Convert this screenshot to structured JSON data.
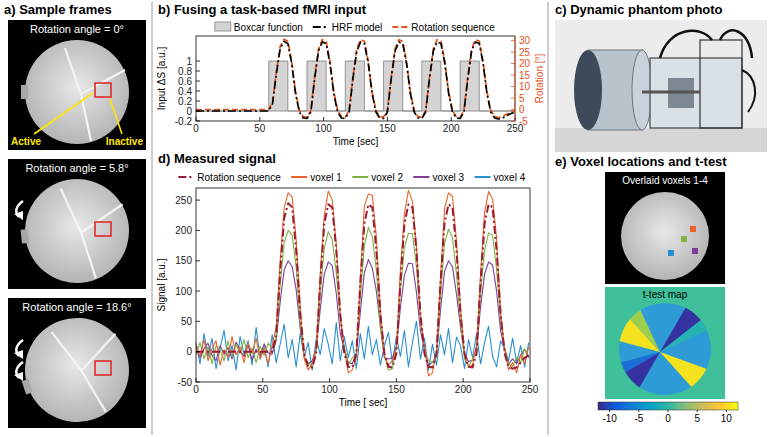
{
  "panel_a": {
    "title": "a) Sample frames",
    "active_label": "Active",
    "inactive_label": "Inactive",
    "frames": [
      {
        "label": "Rotation angle = 0°",
        "angle": 0
      },
      {
        "label": "Rotation angle = 5.8°",
        "angle": 5.8
      },
      {
        "label": "Rotation angle = 18.6°",
        "angle": 18.6
      }
    ]
  },
  "panel_c": {
    "title": "c) Dynamic phantom photo"
  },
  "panel_e": {
    "title": "e) Voxel locations and t-test",
    "overlay_label": "Overlaid voxels 1-4",
    "map_label": "t-test map",
    "colorbar": {
      "range": [
        -12,
        12
      ],
      "ticks": [
        -10,
        -5,
        0,
        5,
        10
      ]
    }
  },
  "chart_data": [
    {
      "type": "line",
      "title": "b) Fusing a task-based fMRI input",
      "x_label": "Time [sec]",
      "y_label": "Input ΔS [a.u.]",
      "y2_label": "Rotation [°]",
      "xlim": [
        0,
        250
      ],
      "xticks": [
        0,
        50,
        100,
        150,
        200,
        250
      ],
      "ylim": [
        -0.2,
        1.5
      ],
      "yticks": [
        -0.2,
        0,
        0.2,
        0.4,
        0.6,
        0.8,
        1
      ],
      "y2lim": [
        -5,
        32
      ],
      "y2ticks": [
        -5,
        0,
        5,
        10,
        15,
        20,
        25,
        30
      ],
      "legend": "top",
      "x": [
        0,
        3,
        6,
        9,
        12,
        15,
        18,
        21,
        24,
        27,
        30,
        33,
        36,
        39,
        42,
        45,
        48,
        51,
        54,
        57,
        60,
        63,
        66,
        69,
        72,
        75,
        78,
        81,
        84,
        87,
        90,
        93,
        96,
        99,
        102,
        105,
        108,
        111,
        114,
        117,
        120,
        123,
        126,
        129,
        132,
        135,
        138,
        141,
        144,
        147,
        150,
        153,
        156,
        159,
        162,
        165,
        168,
        171,
        174,
        177,
        180,
        183,
        186,
        189,
        192,
        195,
        198,
        201,
        204,
        207,
        210,
        213,
        216,
        219,
        222,
        225,
        228,
        231,
        234,
        237,
        240,
        243,
        246,
        249
      ],
      "series": [
        {
          "name": "Boxcar function",
          "type": "area",
          "color": "#d4d4d4",
          "x": [
            0,
            57,
            57,
            72,
            72,
            87,
            87,
            102,
            102,
            117,
            117,
            132,
            132,
            147,
            147,
            162,
            162,
            177,
            177,
            192,
            192,
            207,
            207,
            222,
            222,
            250
          ],
          "values": [
            0,
            0,
            1,
            1,
            0,
            0,
            1,
            1,
            0,
            0,
            1,
            1,
            0,
            0,
            1,
            1,
            0,
            0,
            1,
            1,
            0,
            0,
            1,
            1,
            0,
            0
          ]
        },
        {
          "name": "HRF model",
          "color": "#000000",
          "line_style": "dashdot",
          "values": [
            0,
            0,
            0,
            0,
            0,
            0,
            0,
            0,
            0,
            0,
            0,
            0,
            0,
            0,
            0,
            0,
            0,
            0,
            0,
            0,
            0.15,
            0.75,
            1.25,
            1.39,
            1.35,
            0.95,
            0.35,
            -0.02,
            -0.14,
            -0.15,
            -0.02,
            0.65,
            1.2,
            1.38,
            1.35,
            0.95,
            0.35,
            -0.02,
            -0.14,
            -0.15,
            -0.02,
            0.65,
            1.2,
            1.38,
            1.35,
            0.95,
            0.35,
            -0.02,
            -0.14,
            -0.15,
            -0.02,
            0.65,
            1.2,
            1.38,
            1.35,
            0.95,
            0.35,
            -0.02,
            -0.14,
            -0.15,
            -0.02,
            0.65,
            1.2,
            1.38,
            1.35,
            0.95,
            0.35,
            -0.02,
            -0.14,
            -0.15,
            -0.02,
            0.65,
            1.2,
            1.38,
            1.35,
            0.95,
            0.35,
            -0.02,
            -0.14,
            -0.16,
            -0.15,
            -0.1,
            -0.06,
            -0.03
          ]
        },
        {
          "name": "Rotation sequence",
          "color": "#e8501a",
          "line_style": "dashed",
          "axis": "y2",
          "values": [
            0,
            0,
            0,
            0,
            0,
            0,
            0,
            0,
            0,
            0,
            0,
            0,
            0,
            0,
            0,
            0,
            0,
            0,
            0,
            0,
            3.3,
            16.5,
            27.5,
            30.6,
            29.7,
            20.9,
            7.7,
            -0.4,
            -3.1,
            -3.3,
            -0.4,
            14.3,
            26.4,
            30.4,
            29.7,
            20.9,
            7.7,
            -0.4,
            -3.1,
            -3.3,
            -0.4,
            14.3,
            26.4,
            30.4,
            29.7,
            20.9,
            7.7,
            -0.4,
            -3.1,
            -3.3,
            -0.4,
            14.3,
            26.4,
            30.4,
            29.7,
            20.9,
            7.7,
            -0.4,
            -3.1,
            -3.3,
            -0.4,
            14.3,
            26.4,
            30.4,
            29.7,
            20.9,
            7.7,
            -0.4,
            -3.1,
            -3.3,
            -0.4,
            14.3,
            26.4,
            30.4,
            29.7,
            20.9,
            7.7,
            -0.4,
            -3.1,
            -3.5,
            -3.3,
            -2.2,
            -1.3,
            -0.7
          ]
        }
      ]
    },
    {
      "type": "line",
      "title": "d) Measured signal",
      "x_label": "Time [ sec]",
      "y_label": "Signal [a.u.]",
      "xlim": [
        0,
        250
      ],
      "xticks": [
        0,
        50,
        100,
        150,
        200,
        250
      ],
      "ylim": [
        -50,
        270
      ],
      "yticks": [
        -50,
        0,
        50,
        100,
        150,
        200,
        250
      ],
      "legend": "top",
      "x": [
        0,
        3,
        6,
        9,
        12,
        15,
        18,
        21,
        24,
        27,
        30,
        33,
        36,
        39,
        42,
        45,
        48,
        51,
        54,
        57,
        60,
        63,
        66,
        69,
        72,
        75,
        78,
        81,
        84,
        87,
        90,
        93,
        96,
        99,
        102,
        105,
        108,
        111,
        114,
        117,
        120,
        123,
        126,
        129,
        132,
        135,
        138,
        141,
        144,
        147,
        150,
        153,
        156,
        159,
        162,
        165,
        168,
        171,
        174,
        177,
        180,
        183,
        186,
        189,
        192,
        195,
        198,
        201,
        204,
        207,
        210,
        213,
        216,
        219,
        222,
        225,
        228,
        231,
        234,
        237,
        240,
        243,
        246,
        249
      ],
      "series": [
        {
          "name": "Rotation sequence",
          "color": "#9b1b30",
          "line_style": "dashdot",
          "values": [
            0,
            0,
            0,
            0,
            0,
            0,
            0,
            0,
            0,
            0,
            0,
            0,
            0,
            0,
            0,
            0,
            0,
            0,
            0,
            0,
            26,
            132,
            220,
            245,
            238,
            167,
            62,
            -3,
            -25,
            -26,
            -3,
            114,
            211,
            243,
            238,
            167,
            62,
            -3,
            -25,
            -26,
            -3,
            114,
            211,
            243,
            238,
            167,
            62,
            -3,
            -25,
            -26,
            -3,
            114,
            211,
            243,
            238,
            167,
            62,
            -3,
            -25,
            -26,
            -3,
            114,
            211,
            243,
            238,
            167,
            62,
            -3,
            -25,
            -26,
            -3,
            114,
            211,
            243,
            238,
            167,
            62,
            -3,
            -25,
            -28,
            -26,
            -18,
            -10,
            -6
          ]
        },
        {
          "name": "voxel 1",
          "color": "#e8642c",
          "line_style": "solid",
          "values": [
            12,
            -8,
            20,
            -15,
            5,
            18,
            -22,
            3,
            -10,
            25,
            -5,
            8,
            -18,
            14,
            -3,
            22,
            -12,
            6,
            -20,
            10,
            40,
            150,
            238,
            262,
            255,
            185,
            75,
            -12,
            -30,
            -20,
            8,
            130,
            225,
            265,
            250,
            178,
            60,
            5,
            -35,
            -30,
            -10,
            118,
            240,
            260,
            258,
            190,
            70,
            -8,
            -22,
            -15,
            5,
            135,
            228,
            266,
            248,
            175,
            55,
            10,
            -40,
            -35,
            0,
            120,
            235,
            262,
            256,
            182,
            72,
            -5,
            -25,
            -22,
            12,
            128,
            230,
            264,
            252,
            188,
            65,
            3,
            -30,
            -18,
            -35,
            -5,
            -20,
            8
          ]
        },
        {
          "name": "voxel 2",
          "color": "#7cb342",
          "line_style": "solid",
          "values": [
            -5,
            15,
            -12,
            8,
            -20,
            10,
            4,
            -15,
            18,
            -8,
            12,
            -3,
            20,
            -10,
            6,
            -18,
            9,
            -6,
            14,
            5,
            22,
            110,
            180,
            200,
            192,
            138,
            45,
            -10,
            -18,
            -25,
            2,
            95,
            170,
            198,
            185,
            130,
            55,
            8,
            -22,
            -10,
            -5,
            88,
            175,
            205,
            190,
            135,
            40,
            -6,
            -30,
            -28,
            10,
            100,
            172,
            195,
            195,
            140,
            50,
            2,
            -15,
            -18,
            -8,
            92,
            178,
            202,
            188,
            128,
            48,
            -12,
            -25,
            -12,
            6,
            98,
            168,
            196,
            192,
            136,
            52,
            5,
            -20,
            -24,
            -10,
            -18,
            5,
            -8
          ]
        },
        {
          "name": "voxel 3",
          "color": "#7e3f98",
          "line_style": "solid",
          "values": [
            8,
            -10,
            5,
            14,
            -6,
            -15,
            10,
            -4,
            7,
            -12,
            16,
            2,
            -8,
            11,
            -14,
            4,
            -6,
            13,
            -2,
            -4,
            18,
            82,
            135,
            150,
            140,
            102,
            38,
            -8,
            -20,
            -15,
            6,
            70,
            128,
            148,
            142,
            96,
            30,
            5,
            -18,
            -20,
            -2,
            65,
            130,
            152,
            138,
            100,
            42,
            -10,
            -12,
            -10,
            8,
            72,
            126,
            146,
            145,
            98,
            35,
            2,
            -22,
            -18,
            -6,
            68,
            132,
            150,
            140,
            94,
            40,
            -4,
            -16,
            -14,
            4,
            74,
            128,
            148,
            143,
            100,
            34,
            6,
            -20,
            -12,
            -20,
            -6,
            4,
            -10
          ]
        },
        {
          "name": "voxel 4",
          "color": "#2a8fd1",
          "line_style": "solid",
          "values": [
            15,
            -20,
            30,
            -8,
            22,
            -28,
            5,
            35,
            -15,
            10,
            -30,
            25,
            -5,
            18,
            -22,
            40,
            -12,
            8,
            -25,
            28,
            -18,
            12,
            45,
            -10,
            20,
            -25,
            30,
            -8,
            15,
            -30,
            22,
            -5,
            38,
            12,
            -20,
            48,
            -15,
            25,
            -10,
            18,
            -28,
            30,
            -12,
            42,
            -5,
            20,
            -22,
            10,
            32,
            -18,
            25,
            -8,
            35,
            -25,
            15,
            50,
            -12,
            22,
            -30,
            12,
            -22,
            28,
            -5,
            38,
            -18,
            24,
            10,
            -28,
            20,
            -10,
            30,
            -20,
            15,
            42,
            -8,
            -25,
            18,
            5,
            -15,
            22,
            -18,
            10,
            -25,
            15
          ]
        }
      ]
    }
  ]
}
